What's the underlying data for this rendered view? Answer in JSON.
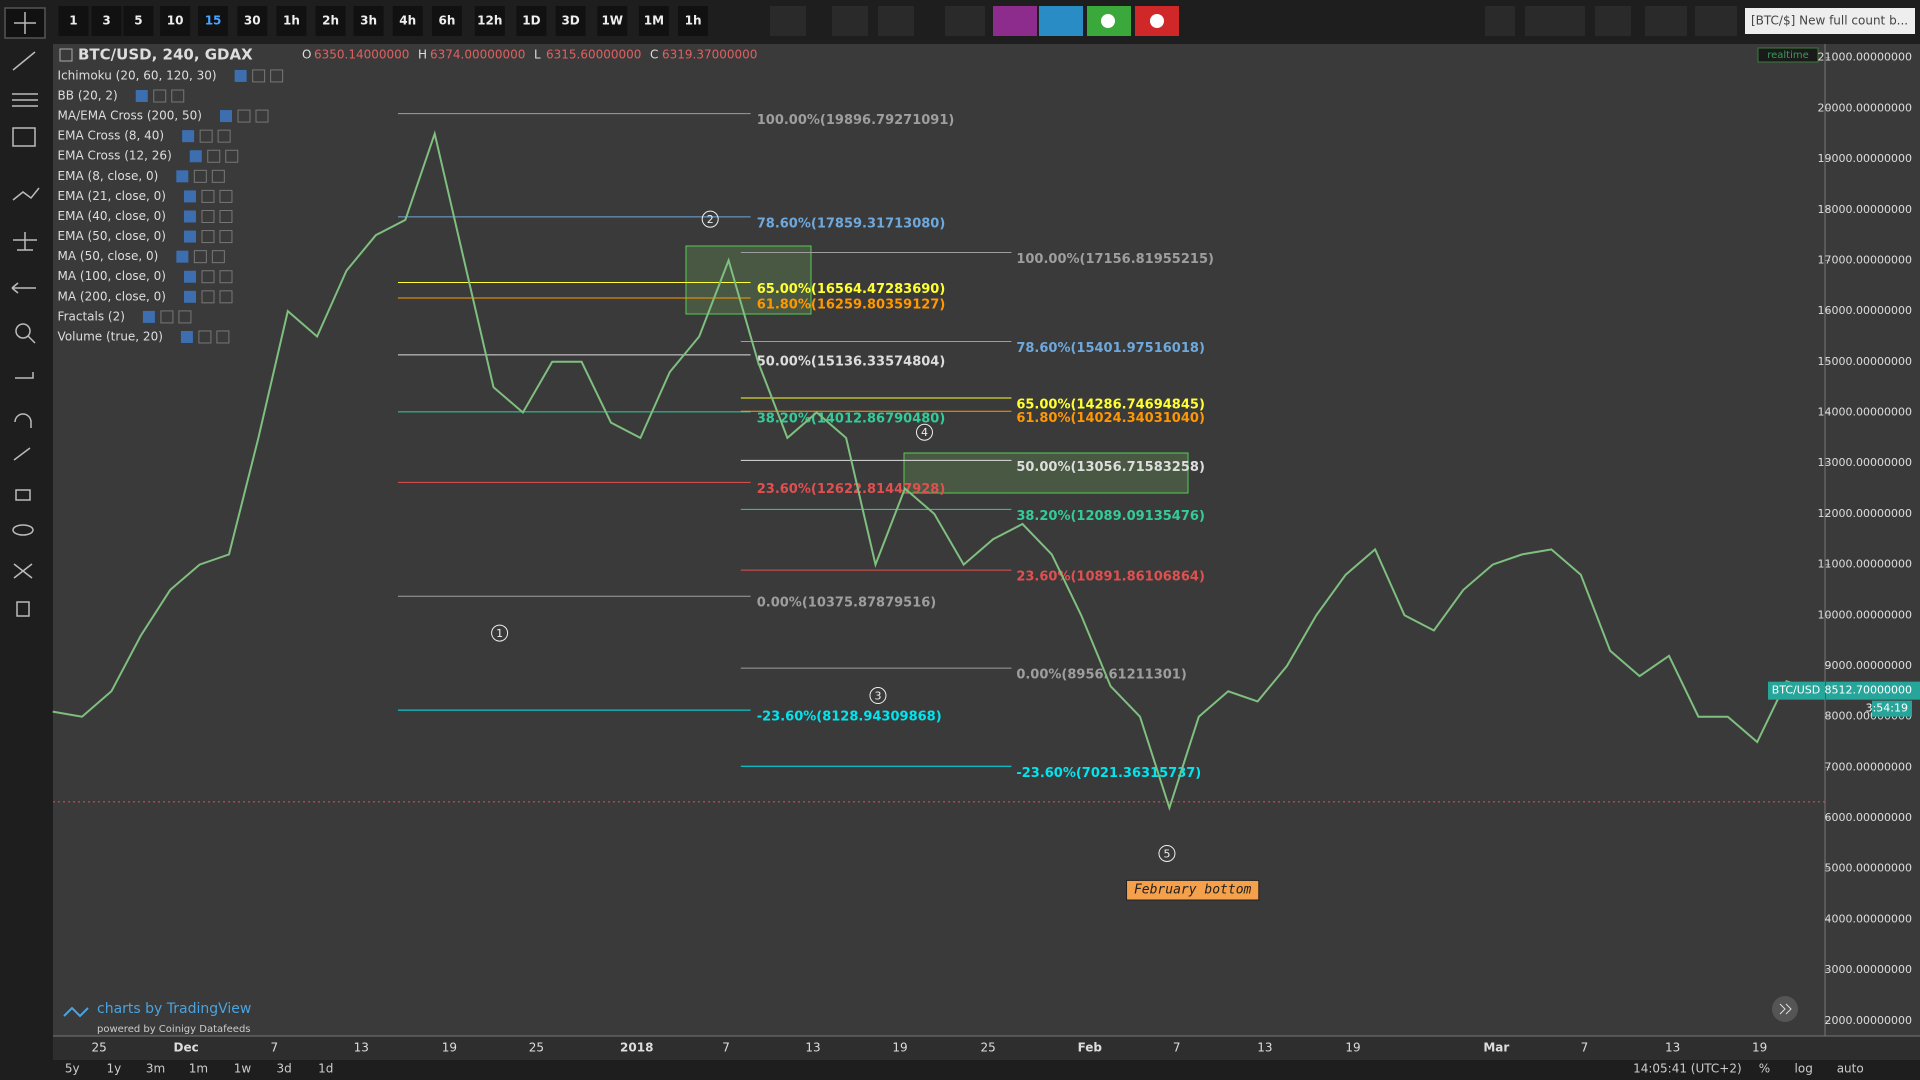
{
  "toolbar": {
    "intervals": [
      "1",
      "3",
      "5",
      "10",
      "15",
      "30",
      "1h",
      "2h",
      "3h",
      "4h",
      "6h",
      "12h",
      "1D",
      "3D",
      "1W",
      "1M",
      "1h"
    ],
    "title_box": "[BTC/$] New full count b..."
  },
  "legend": {
    "symbol": "BTC/USD, 240, GDAX",
    "ohlc": [
      {
        "key": "O",
        "value": "6350.14000000"
      },
      {
        "key": "H",
        "value": "6374.00000000"
      },
      {
        "key": "L",
        "value": "6315.60000000"
      },
      {
        "key": "C",
        "value": "6319.37000000"
      }
    ],
    "indicators": [
      "Ichimoku (20, 60, 120, 30)",
      "BB (20, 2)",
      "MA/EMA Cross (200, 50)",
      "EMA Cross (8, 40)",
      "EMA Cross (12, 26)",
      "EMA (8, close, 0)",
      "EMA (21, close, 0)",
      "EMA (40, close, 0)",
      "EMA (50, close, 0)",
      "MA (50, close, 0)",
      "MA (100, close, 0)",
      "MA (200, close, 0)",
      "Fractals (2)",
      "Volume (true, 20)"
    ]
  },
  "realtime": "realtime",
  "chart_data": {
    "type": "line",
    "series": [
      {
        "name": "BTC/USD",
        "color": "#7fbf7f",
        "values": [
          8100,
          8000,
          8500,
          9600,
          10500,
          11000,
          11200,
          13500,
          16000,
          15500,
          16800,
          17500,
          17800,
          19500,
          17000,
          14500,
          14000,
          15000,
          15000,
          13800,
          13500,
          14800,
          15500,
          17000,
          15000,
          13500,
          14000,
          13500,
          11000,
          12500,
          12000,
          11000,
          11500,
          11800,
          11200,
          10000,
          8600,
          8000,
          6200,
          8000,
          8500,
          8300,
          9000,
          10000,
          10800,
          11300,
          10000,
          9700,
          10500,
          11000,
          11200,
          11300,
          10800,
          9300,
          8800,
          9200,
          8000,
          8000,
          7500,
          8700,
          8512
        ]
      }
    ],
    "ylim": [
      1700,
      21270
    ],
    "yticks": [
      {
        "value": 2000,
        "label": "2000.00000000"
      },
      {
        "value": 3000,
        "label": "3000.00000000"
      },
      {
        "value": 4000,
        "label": "4000.00000000"
      },
      {
        "value": 5000,
        "label": "5000.00000000"
      },
      {
        "value": 6000,
        "label": "6000.00000000"
      },
      {
        "value": 7000,
        "label": "7000.00000000"
      },
      {
        "value": 8000,
        "label": "8000.00000000"
      },
      {
        "value": 9000,
        "label": "9000.00000000"
      },
      {
        "value": 10000,
        "label": "10000.00000000"
      },
      {
        "value": 11000,
        "label": "11000.00000000"
      },
      {
        "value": 12000,
        "label": "12000.00000000"
      },
      {
        "value": 13000,
        "label": "13000.00000000"
      },
      {
        "value": 14000,
        "label": "14000.00000000"
      },
      {
        "value": 15000,
        "label": "15000.00000000"
      },
      {
        "value": 16000,
        "label": "16000.00000000"
      },
      {
        "value": 17000,
        "label": "17000.00000000"
      },
      {
        "value": 18000,
        "label": "18000.00000000"
      },
      {
        "value": 19000,
        "label": "19000.00000000"
      },
      {
        "value": 20000,
        "label": "20000.00000000"
      },
      {
        "value": 21000,
        "label": "21000.00000000"
      }
    ],
    "x_axis_labels": [
      "25",
      "Dec",
      "7",
      "13",
      "19",
      "25",
      "2018",
      "7",
      "13",
      "19",
      "25",
      "Feb",
      "7",
      "13",
      "19",
      "Mar",
      "7",
      "13",
      "19"
    ],
    "fib_levels": [
      {
        "label": "100.00%(19896.79271091)",
        "value": 19896.79271091,
        "color": "#9e9e9e"
      },
      {
        "label": "78.60%(17859.31713080)",
        "value": 17859.3171308,
        "color": "#6fa8dc"
      },
      {
        "label": "65.00%(16564.47283690)",
        "value": 16564.4728369,
        "color": "#ffff33"
      },
      {
        "label": "61.80%(16259.80359127)",
        "value": 16259.80359127,
        "color": "#ff9800"
      },
      {
        "label": "50.00%(15136.33574804)",
        "value": 15136.33574804,
        "color": "#dddddd"
      },
      {
        "label": "38.20%(14012.86790480)",
        "value": 14012.8679048,
        "color": "#33cc99"
      },
      {
        "label": "23.60%(12622.81447928)",
        "value": 12622.81447928,
        "color": "#e05050"
      },
      {
        "label": "0.00%(10375.87879516)",
        "value": 10375.87879516,
        "color": "#9e9e9e"
      },
      {
        "label": "-23.60%(8128.94309868)",
        "value": 8128.94309868,
        "color": "#00e5ee"
      },
      {
        "label": "100.00%(17156.81955215)",
        "value": 17156.81955215,
        "color": "#9e9e9e"
      },
      {
        "label": "78.60%(15401.97516018)",
        "value": 15401.97516018,
        "color": "#6fa8dc"
      },
      {
        "label": "65.00%(14286.74694845)",
        "value": 14286.74694845,
        "color": "#ffff33"
      },
      {
        "label": "61.80%(14024.34031040)",
        "value": 14024.3403104,
        "color": "#ff9800"
      },
      {
        "label": "50.00%(13056.71583258)",
        "value": 13056.71583258,
        "color": "#dddddd"
      },
      {
        "label": "38.20%(12089.09135476)",
        "value": 12089.09135476,
        "color": "#33cc99"
      },
      {
        "label": "23.60%(10891.86106864)",
        "value": 10891.86106864,
        "color": "#e05050"
      },
      {
        "label": "0.00%(8956.61211301)",
        "value": 8956.61211301,
        "color": "#9e9e9e"
      },
      {
        "label": "-23.60%(7021.36315737)",
        "value": 7021.36315737,
        "color": "#00e5ee"
      }
    ],
    "close_line": 6319.37,
    "last_price": {
      "value": 8512.7,
      "label": "8512.70000000",
      "countdown": "3:54:19"
    },
    "waves": [
      "1",
      "2",
      "3",
      "4",
      "5"
    ],
    "note": "February bottom"
  },
  "footer": {
    "branding": "charts by TradingView",
    "feed": "powered by Coinigy Datafeeds",
    "ranges": [
      "5y",
      "1y",
      "3m",
      "1m",
      "1w",
      "3d",
      "1d"
    ],
    "clock": "14:05:41 (UTC+2)",
    "options": [
      "%",
      "log",
      "auto"
    ]
  }
}
